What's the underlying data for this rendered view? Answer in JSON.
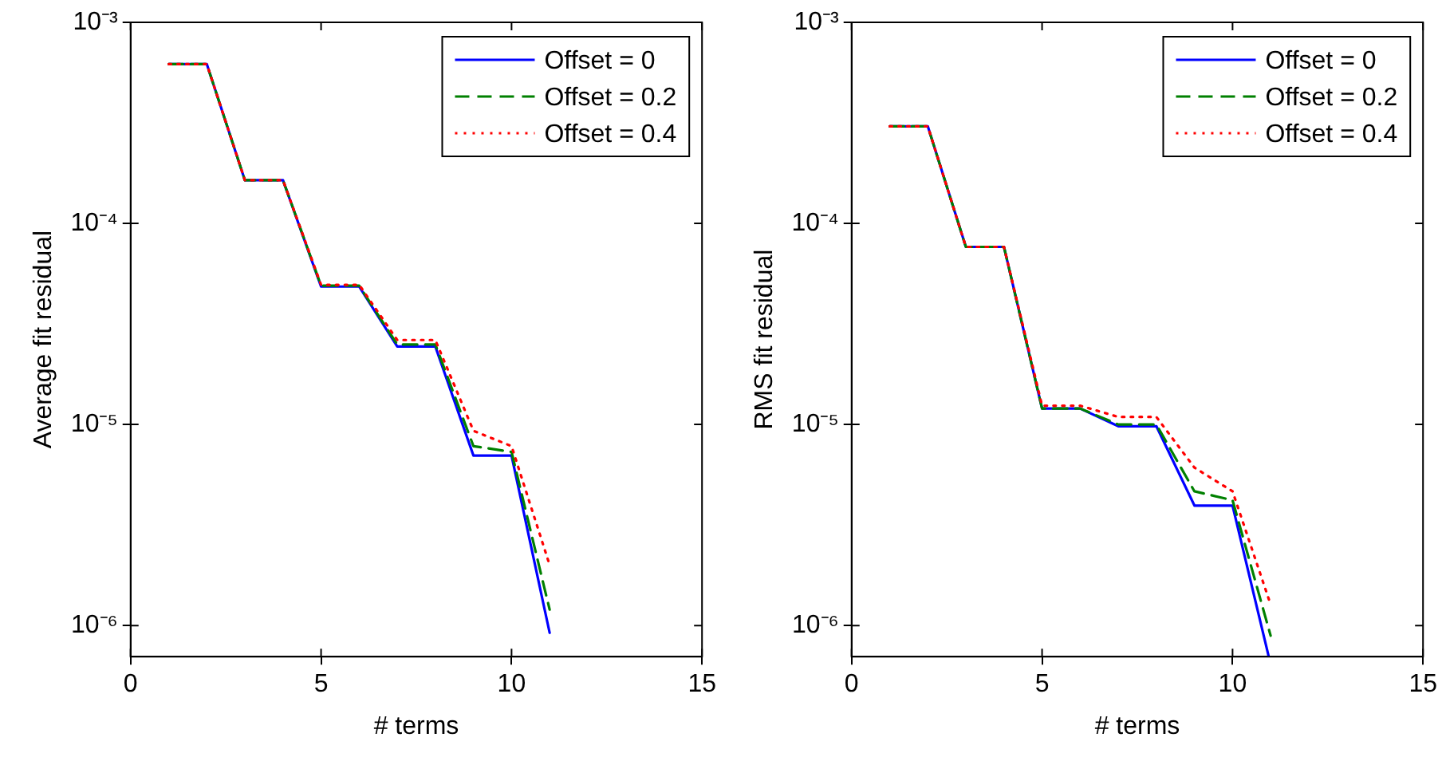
{
  "chart_data": [
    {
      "type": "line",
      "xlabel": "# terms",
      "ylabel": "Average fit residual",
      "x": [
        1,
        2,
        3,
        4,
        5,
        6,
        7,
        8,
        9,
        10,
        11
      ],
      "xlim": [
        0,
        15
      ],
      "xticks": [
        0,
        5,
        10,
        15
      ],
      "ylim": [
        7e-07,
        0.001
      ],
      "yticks": [
        {
          "value": 1e-06,
          "label": "10⁻⁶"
        },
        {
          "value": 1e-05,
          "label": "10⁻⁵"
        },
        {
          "value": 0.0001,
          "label": "10⁻⁴"
        },
        {
          "value": 0.001,
          "label": "10⁻³"
        }
      ],
      "log": "y",
      "legend": "top right",
      "marker": "none",
      "series": [
        {
          "name": "Offset = 0",
          "color": "#0000ff",
          "line_style": "solid",
          "values": [
            0.00062,
            0.00062,
            0.000164,
            0.000164,
            4.85e-05,
            4.85e-05,
            2.44e-05,
            2.44e-05,
            7e-06,
            7e-06,
            9.2e-07
          ]
        },
        {
          "name": "Offset = 0.2",
          "color": "#008000",
          "line_style": "dashed",
          "values": [
            0.00062,
            0.00062,
            0.000164,
            0.000164,
            4.9e-05,
            4.9e-05,
            2.5e-05,
            2.5e-05,
            7.8e-06,
            7.3e-06,
            1.2e-06
          ]
        },
        {
          "name": "Offset = 0.4",
          "color": "#ff0000",
          "line_style": "dotted",
          "values": [
            0.00062,
            0.00062,
            0.000164,
            0.000164,
            4.95e-05,
            4.95e-05,
            2.63e-05,
            2.63e-05,
            9.3e-06,
            7.8e-06,
            2e-06
          ]
        }
      ]
    },
    {
      "type": "line",
      "xlabel": "# terms",
      "ylabel": "RMS fit residual",
      "x": [
        1,
        2,
        3,
        4,
        5,
        6,
        7,
        8,
        9,
        10,
        11
      ],
      "xlim": [
        0,
        15
      ],
      "xticks": [
        0,
        5,
        10,
        15
      ],
      "ylim": [
        7e-07,
        0.001
      ],
      "yticks": [
        {
          "value": 1e-06,
          "label": "10⁻⁶"
        },
        {
          "value": 1e-05,
          "label": "10⁻⁵"
        },
        {
          "value": 0.0001,
          "label": "10⁻⁴"
        },
        {
          "value": 0.001,
          "label": "10⁻³"
        }
      ],
      "log": "y",
      "legend": "top right",
      "marker": "none",
      "series": [
        {
          "name": "Offset = 0",
          "color": "#0000ff",
          "line_style": "solid",
          "x": [
            1,
            2,
            3,
            4,
            5,
            6,
            7,
            8,
            9,
            10,
            10.95
          ],
          "values": [
            0.000304,
            0.000304,
            7.64e-05,
            7.64e-05,
            1.2e-05,
            1.2e-05,
            9.8e-06,
            9.8e-06,
            3.95e-06,
            3.95e-06,
            7e-07
          ]
        },
        {
          "name": "Offset = 0.2",
          "color": "#008000",
          "line_style": "dashed",
          "values": [
            0.000304,
            0.000304,
            7.64e-05,
            7.64e-05,
            1.2e-05,
            1.2e-05,
            1e-05,
            1e-05,
            4.65e-06,
            4.2e-06,
            8.9e-07
          ]
        },
        {
          "name": "Offset = 0.4",
          "color": "#ff0000",
          "line_style": "dotted",
          "values": [
            0.000304,
            0.000304,
            7.64e-05,
            7.64e-05,
            1.24e-05,
            1.24e-05,
            1.09e-05,
            1.09e-05,
            6.1e-06,
            4.65e-06,
            1.27e-06
          ]
        }
      ]
    }
  ]
}
